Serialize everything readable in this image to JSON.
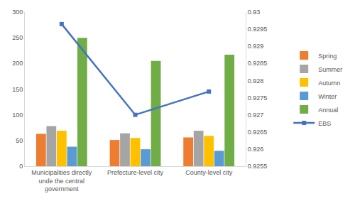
{
  "chart_data": {
    "type": "bar",
    "categories": [
      "Municipalities directly unde the central government",
      "Prefecture-level city",
      "County-level city"
    ],
    "series": [
      {
        "name": "Spring",
        "color": "#ED7D31",
        "values": [
          63,
          51,
          56
        ]
      },
      {
        "name": "Summer",
        "color": "#A5A5A5",
        "values": [
          78,
          64,
          69
        ]
      },
      {
        "name": "Autumn",
        "color": "#FFC000",
        "values": [
          69,
          55,
          59
        ]
      },
      {
        "name": "Winter",
        "color": "#5B9BD5",
        "values": [
          38,
          33,
          30
        ]
      },
      {
        "name": "Annual",
        "color": "#70AD47",
        "values": [
          250,
          205,
          217
        ]
      },
      {
        "name": "EBS",
        "color": "#4472C4",
        "type": "line",
        "marker": "square",
        "axis": "y2",
        "values": [
          0.92965,
          0.927,
          0.92768
        ]
      }
    ],
    "ylim": [
      0,
      300
    ],
    "yticks": [
      0,
      50,
      100,
      150,
      200,
      250,
      300
    ],
    "y2lim": [
      0.9255,
      0.93
    ],
    "y2ticks": [
      0.9255,
      0.926,
      0.9265,
      0.927,
      0.9275,
      0.928,
      0.9285,
      0.929,
      0.9295,
      0.93
    ],
    "grid": false,
    "legend": "right"
  }
}
